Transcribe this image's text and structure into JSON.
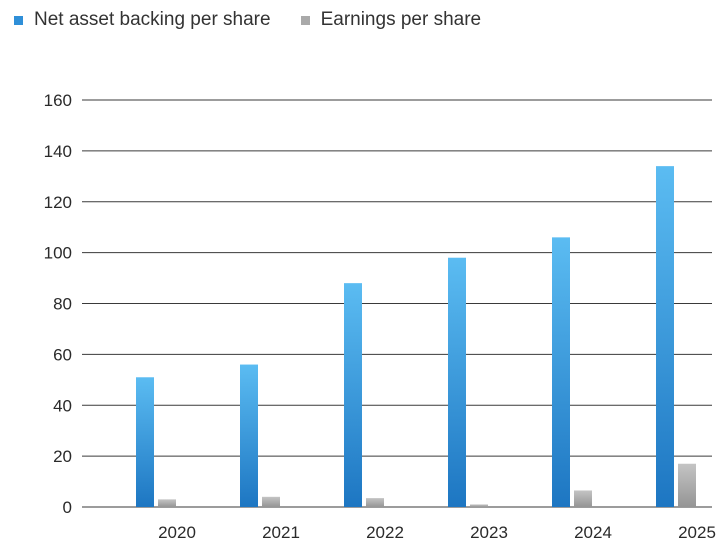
{
  "chart_data": {
    "type": "bar",
    "categories": [
      "2020",
      "2021",
      "2022",
      "2023",
      "2024",
      "2025"
    ],
    "series": [
      {
        "name": "Net asset backing per share",
        "values": [
          51,
          56,
          88,
          98,
          106,
          134
        ],
        "color": "#2f8fd8"
      },
      {
        "name": "Earnings per share",
        "values": [
          3,
          4,
          3.5,
          1,
          6.5,
          17
        ],
        "color": "#a9a9a9"
      }
    ],
    "yticks": [
      "0",
      "20",
      "40",
      "60",
      "80",
      "100",
      "120",
      "140",
      "160"
    ],
    "ylim": [
      0,
      160
    ],
    "grid": true,
    "legend_position": "top-left"
  }
}
